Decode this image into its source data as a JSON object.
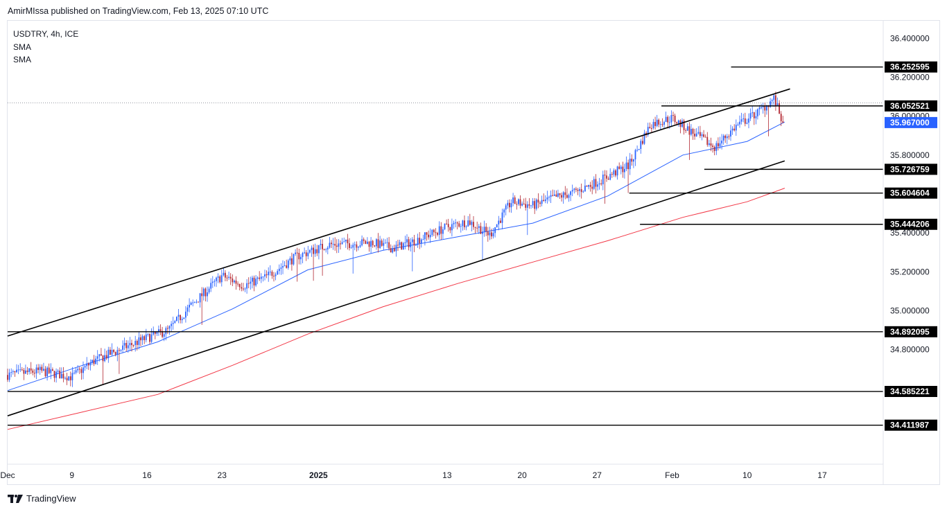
{
  "header": {
    "publisher_line": "AmirMIssa published on TradingView.com, Feb 13, 2025 07:10 UTC"
  },
  "legend": {
    "symbol": "USDTRY, 4h, ICE",
    "indicators": [
      "SMA",
      "SMA"
    ]
  },
  "footer": {
    "brand": "TradingView"
  },
  "colors": {
    "up": "#2962ff",
    "down": "#b22833",
    "sma_fast": "#2962ff",
    "sma_slow": "#f23645",
    "last_price_bg": "#2962ff",
    "grid_dots": "#9598a1",
    "lines": "#000000",
    "axis_text": "#131722"
  },
  "chart_data": {
    "type": "candlestick",
    "symbol": "USDTRY",
    "interval": "4h",
    "exchange": "ICE",
    "y_ticks": [
      "36.400000",
      "36.200000",
      "36.000000",
      "35.800000",
      "35.400000",
      "35.200000",
      "35.000000",
      "34.800000"
    ],
    "ylim": [
      34.215,
      36.49
    ],
    "x_ticks": [
      {
        "label": "Dec",
        "date": "2024-12-03"
      },
      {
        "label": "9",
        "date": "2024-12-09"
      },
      {
        "label": "16",
        "date": "2024-12-16"
      },
      {
        "label": "23",
        "date": "2024-12-23"
      },
      {
        "label": "2025",
        "date": "2025-01-01",
        "bold": true
      },
      {
        "label": "13",
        "date": "2025-01-13"
      },
      {
        "label": "20",
        "date": "2025-01-20"
      },
      {
        "label": "27",
        "date": "2025-01-27"
      },
      {
        "label": "Feb",
        "date": "2025-02-03"
      },
      {
        "label": "10",
        "date": "2025-02-10"
      },
      {
        "label": "17",
        "date": "2025-02-17"
      }
    ],
    "last_price": {
      "label": "35.967000",
      "value": 35.967
    },
    "horizontal_levels": [
      {
        "label": "36.252595",
        "value": 36.252595,
        "from": "2025-02-08T12:00"
      },
      {
        "label": "36.052521",
        "value": 36.052521,
        "from": "2025-02-02T00:00"
      },
      {
        "label": "35.726759",
        "value": 35.726759,
        "from": "2025-02-06T00:00"
      },
      {
        "label": "35.604604",
        "value": 35.604604,
        "from": "2025-01-30T00:00"
      },
      {
        "label": "35.444206",
        "value": 35.444206,
        "from": "2025-01-31T00:00"
      },
      {
        "label": "34.892095",
        "value": 34.892095,
        "from": "2024-12-03T00:00"
      },
      {
        "label": "34.585221",
        "value": 34.585221,
        "from": "2024-12-03T00:00"
      },
      {
        "label": "34.411987",
        "value": 34.411987,
        "from": "2024-12-03T00:00"
      }
    ],
    "channel": {
      "upper": [
        {
          "date": "2024-12-03T00:00",
          "value": 34.87
        },
        {
          "date": "2025-02-14T00:00",
          "value": 36.14
        }
      ],
      "lower": [
        {
          "date": "2024-12-03T00:00",
          "value": 34.46
        },
        {
          "date": "2025-02-13T12:00",
          "value": 35.77
        }
      ]
    },
    "sma_fast": [
      {
        "date": "2024-12-03T00:00",
        "value": 34.59
      },
      {
        "date": "2024-12-10T00:00",
        "value": 34.72
      },
      {
        "date": "2024-12-17T00:00",
        "value": 34.84
      },
      {
        "date": "2024-12-24T00:00",
        "value": 35.01
      },
      {
        "date": "2024-12-31T00:00",
        "value": 35.21
      },
      {
        "date": "2025-01-07T00:00",
        "value": 35.31
      },
      {
        "date": "2025-01-14T00:00",
        "value": 35.38
      },
      {
        "date": "2025-01-21T00:00",
        "value": 35.45
      },
      {
        "date": "2025-01-28T00:00",
        "value": 35.59
      },
      {
        "date": "2025-02-04T00:00",
        "value": 35.8
      },
      {
        "date": "2025-02-10T00:00",
        "value": 35.87
      },
      {
        "date": "2025-02-13T12:00",
        "value": 35.97
      }
    ],
    "sma_slow": [
      {
        "date": "2024-12-03T00:00",
        "value": 34.39
      },
      {
        "date": "2024-12-10T00:00",
        "value": 34.48
      },
      {
        "date": "2024-12-17T00:00",
        "value": 34.57
      },
      {
        "date": "2024-12-24T00:00",
        "value": 34.72
      },
      {
        "date": "2024-12-31T00:00",
        "value": 34.88
      },
      {
        "date": "2025-01-07T00:00",
        "value": 35.02
      },
      {
        "date": "2025-01-14T00:00",
        "value": 35.14
      },
      {
        "date": "2025-01-21T00:00",
        "value": 35.25
      },
      {
        "date": "2025-01-28T00:00",
        "value": 35.36
      },
      {
        "date": "2025-02-04T00:00",
        "value": 35.48
      },
      {
        "date": "2025-02-10T00:00",
        "value": 35.56
      },
      {
        "date": "2025-02-13T12:00",
        "value": 35.63
      }
    ],
    "price_path": [
      {
        "date": "2024-12-03T00:00",
        "value": 34.67
      },
      {
        "date": "2024-12-06T00:00",
        "value": 34.69
      },
      {
        "date": "2024-12-09T00:00",
        "value": 34.66
      },
      {
        "date": "2024-12-11T00:00",
        "value": 34.74
      },
      {
        "date": "2024-12-13T00:00",
        "value": 34.79
      },
      {
        "date": "2024-12-16T00:00",
        "value": 34.86
      },
      {
        "date": "2024-12-18T00:00",
        "value": 34.9
      },
      {
        "date": "2024-12-20T00:00",
        "value": 35.02
      },
      {
        "date": "2024-12-23T00:00",
        "value": 35.18
      },
      {
        "date": "2024-12-25T00:00",
        "value": 35.13
      },
      {
        "date": "2024-12-27T00:00",
        "value": 35.17
      },
      {
        "date": "2024-12-30T00:00",
        "value": 35.28
      },
      {
        "date": "2025-01-02T00:00",
        "value": 35.34
      },
      {
        "date": "2025-01-06T00:00",
        "value": 35.35
      },
      {
        "date": "2025-01-08T00:00",
        "value": 35.32
      },
      {
        "date": "2025-01-10T00:00",
        "value": 35.36
      },
      {
        "date": "2025-01-13T00:00",
        "value": 35.43
      },
      {
        "date": "2025-01-15T00:00",
        "value": 35.46
      },
      {
        "date": "2025-01-17T00:00",
        "value": 35.39
      },
      {
        "date": "2025-01-19T00:00",
        "value": 35.56
      },
      {
        "date": "2025-01-21T00:00",
        "value": 35.54
      },
      {
        "date": "2025-01-23T00:00",
        "value": 35.58
      },
      {
        "date": "2025-01-25T00:00",
        "value": 35.61
      },
      {
        "date": "2025-01-28T00:00",
        "value": 35.69
      },
      {
        "date": "2025-01-30T00:00",
        "value": 35.75
      },
      {
        "date": "2025-02-01T00:00",
        "value": 35.96
      },
      {
        "date": "2025-02-03T00:00",
        "value": 35.99
      },
      {
        "date": "2025-02-05T00:00",
        "value": 35.91
      },
      {
        "date": "2025-02-07T00:00",
        "value": 35.84
      },
      {
        "date": "2025-02-09T00:00",
        "value": 35.95
      },
      {
        "date": "2025-02-11T00:00",
        "value": 36.02
      },
      {
        "date": "2025-02-12T12:00",
        "value": 36.09
      },
      {
        "date": "2025-02-13T08:00",
        "value": 35.967
      }
    ],
    "candle_count": 432
  }
}
